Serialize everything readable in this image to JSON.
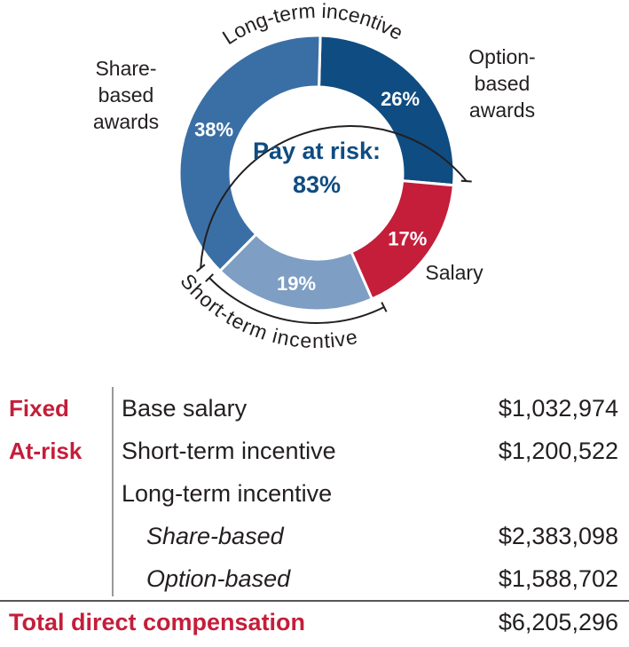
{
  "chart_data": {
    "type": "pie",
    "center_label": "Pay at risk:",
    "center_value": "83%",
    "slices": [
      {
        "name": "Option-based awards",
        "lines": [
          "Option-",
          "based",
          "awards"
        ],
        "value": 26,
        "label": "26%",
        "color": "#0f4c81"
      },
      {
        "name": "Salary",
        "lines": [
          "Salary"
        ],
        "value": 17,
        "label": "17%",
        "color": "#c41e3a"
      },
      {
        "name": "Short-term incentive",
        "lines": [],
        "value": 19,
        "label": "19%",
        "color": "#7e9ec3"
      },
      {
        "name": "Share-based awards",
        "lines": [
          "Share-",
          "based",
          "awards"
        ],
        "value": 38,
        "label": "38%",
        "color": "#3a6fa5"
      }
    ],
    "brackets": [
      {
        "name": "Long-term incentive",
        "label": "Long-term incentive"
      },
      {
        "name": "Short-term incentive",
        "label": "Short-term incentive"
      }
    ]
  },
  "table": {
    "rows": [
      {
        "category": "Fixed",
        "item": "Base salary",
        "amount": "$1,032,974",
        "italic": false
      },
      {
        "category": "At-risk",
        "item": "Short-term incentive",
        "amount": "$1,200,522",
        "italic": false
      },
      {
        "category": "",
        "item": "Long-term incentive",
        "amount": "",
        "italic": false
      },
      {
        "category": "",
        "item": "Share-based",
        "amount": "$2,383,098",
        "italic": true
      },
      {
        "category": "",
        "item": "Option-based",
        "amount": "$1,588,702",
        "italic": true
      }
    ],
    "total": {
      "label": "Total direct compensation",
      "amount": "$6,205,296"
    }
  },
  "colors": {
    "accent_red": "#c41e3a",
    "navy": "#0f4c81",
    "text": "#231f20",
    "rule": "#999999"
  }
}
